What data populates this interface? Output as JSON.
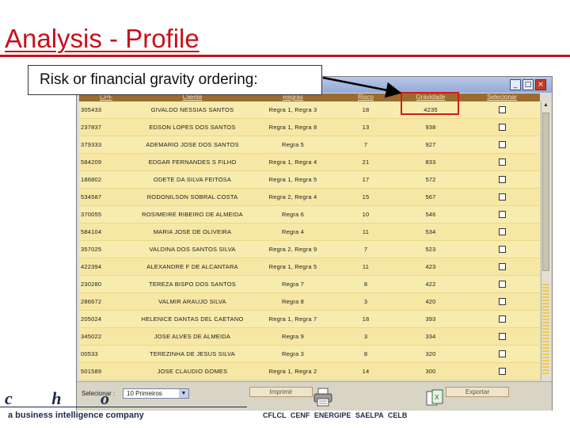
{
  "slide": {
    "title": "Analysis - Profile",
    "callout": "Risk or financial gravity ordering:"
  },
  "colors": {
    "title_red": "#c8101a",
    "header_brown": "#9b6b2f",
    "row_yellow": "#f6e8a4",
    "highlight_red": "#d61a1a"
  },
  "window": {
    "controls": {
      "minimize": "_",
      "maximize": "□",
      "close": "×"
    }
  },
  "table": {
    "headers": [
      "CPF",
      "Cliente",
      "Regras",
      "Risco",
      "Gravidade",
      "Selecionar"
    ],
    "rows": [
      {
        "cpf": "305433",
        "cliente": "GIVALDO NESSIAS SANTOS",
        "regras": "Regra 1, Regra 3",
        "risco": "18",
        "gravidade": "4235"
      },
      {
        "cpf": "237837",
        "cliente": "EDSON LOPES DOS SANTOS",
        "regras": "Regra 1, Regra 8",
        "risco": "13",
        "gravidade": "938"
      },
      {
        "cpf": "379333",
        "cliente": "ADEMARIO JOSE DOS SANTOS",
        "regras": "Regra 5",
        "risco": "7",
        "gravidade": "927"
      },
      {
        "cpf": "584209",
        "cliente": "EDGAR FERNANDES S FILHO",
        "regras": "Regra 1, Regra 4",
        "risco": "21",
        "gravidade": "833"
      },
      {
        "cpf": "186802",
        "cliente": "ODETE DA SILVA FEITOSA",
        "regras": "Regra 1, Regra 5",
        "risco": "17",
        "gravidade": "572"
      },
      {
        "cpf": "534587",
        "cliente": "RODONILSON SOBRAL COSTA",
        "regras": "Regra 2, Regra 4",
        "risco": "15",
        "gravidade": "567"
      },
      {
        "cpf": "370055",
        "cliente": "ROSIMEIRE RIBEIRO DE ALMEIDA",
        "regras": "Regra 6",
        "risco": "10",
        "gravidade": "546"
      },
      {
        "cpf": "584104",
        "cliente": "MARIA JOSE DE OLIVEIRA",
        "regras": "Regra 4",
        "risco": "11",
        "gravidade": "534"
      },
      {
        "cpf": "357025",
        "cliente": "VALDINA DOS SANTOS SILVA",
        "regras": "Regra 2, Regra 9",
        "risco": "7",
        "gravidade": "523"
      },
      {
        "cpf": "422394",
        "cliente": "ALEXANDRE F DE ALCANTARA",
        "regras": "Regra 1, Regra 5",
        "risco": "11",
        "gravidade": "423"
      },
      {
        "cpf": "230280",
        "cliente": "TEREZA BISPO DOS SANTOS",
        "regras": "Regra 7",
        "risco": "8",
        "gravidade": "422"
      },
      {
        "cpf": "286672",
        "cliente": "VALMIR ARAUJO SILVA",
        "regras": "Regra 8",
        "risco": "3",
        "gravidade": "420"
      },
      {
        "cpf": "205024",
        "cliente": "HELENICE DANTAS DEL CAETANO",
        "regras": "Regra 1, Regra 7",
        "risco": "18",
        "gravidade": "393"
      },
      {
        "cpf": "345022",
        "cliente": "JOSE ALVES DE ALMEIDA",
        "regras": "Regra 9",
        "risco": "3",
        "gravidade": "334"
      },
      {
        "cpf": "00533",
        "cliente": "TEREZINHA DE JESUS SILVA",
        "regras": "Regra 3",
        "risco": "8",
        "gravidade": "320"
      },
      {
        "cpf": "501589",
        "cliente": "JOSE CLAUDIO GOMES",
        "regras": "Regra 1, Regra 2",
        "risco": "14",
        "gravidade": "300"
      }
    ]
  },
  "footer": {
    "select_label": "Selecionar :",
    "select_value": "10 Primeiros",
    "print_label": "Imprimir",
    "export_label": "Exportar"
  },
  "branding": {
    "logo": "c h o",
    "tagline": "a business intelligence company",
    "clients": "CFLCL CENF ENERGIPE SAELPA CELB"
  }
}
